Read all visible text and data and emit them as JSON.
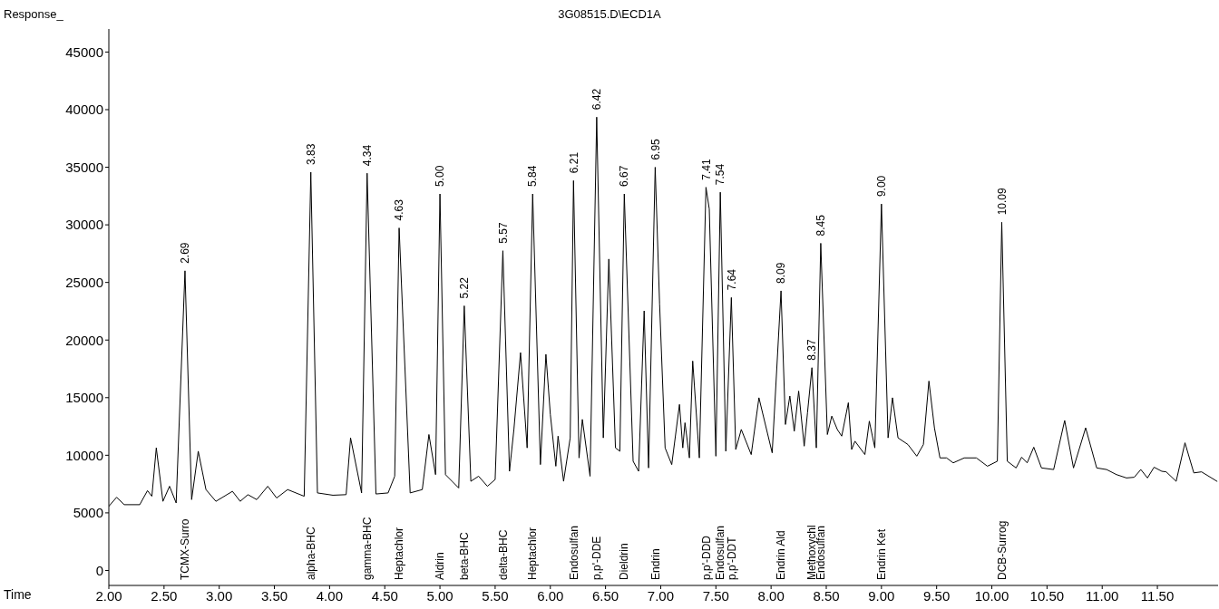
{
  "chart_data": {
    "type": "line",
    "title": "3G08515.D\\ECD1A",
    "xlabel": "Time",
    "ylabel": "Response_",
    "xlim": [
      2,
      12.05
    ],
    "xticks": [
      {
        "value": 2,
        "label": "2.00"
      },
      {
        "value": 2.5,
        "label": "2.50"
      },
      {
        "value": 3,
        "label": "3.00"
      },
      {
        "value": 3.5,
        "label": "3.50"
      },
      {
        "value": 4,
        "label": "4.00"
      },
      {
        "value": 4.5,
        "label": "4.50"
      },
      {
        "value": 5,
        "label": "5.00"
      },
      {
        "value": 5.5,
        "label": "5.50"
      },
      {
        "value": 6,
        "label": "6.00"
      },
      {
        "value": 6.5,
        "label": "6.50"
      },
      {
        "value": 7,
        "label": "7.00"
      },
      {
        "value": 7.5,
        "label": "7.50"
      },
      {
        "value": 8,
        "label": "8.00"
      },
      {
        "value": 8.5,
        "label": "8.50"
      },
      {
        "value": 9,
        "label": "9.00"
      },
      {
        "value": 9.5,
        "label": "9.50"
      },
      {
        "value": 10,
        "label": "10.00"
      },
      {
        "value": 10.5,
        "label": "10.50"
      },
      {
        "value": 11,
        "label": "11.00"
      },
      {
        "value": 11.5,
        "label": "11.50"
      }
    ],
    "ylim": [
      -1300,
      47000
    ],
    "yticks": [
      0,
      5000,
      10000,
      15000,
      20000,
      25000,
      30000,
      35000,
      40000,
      45000
    ],
    "grid": false,
    "marker": "none",
    "line_style": "solid",
    "series": [
      {
        "color": "#000000",
        "x": [
          2.0,
          2.07,
          2.14,
          2.28,
          2.35,
          2.39,
          2.43,
          2.49,
          2.55,
          2.61,
          2.69,
          2.75,
          2.81,
          2.88,
          2.97,
          3.12,
          3.19,
          3.26,
          3.34,
          3.44,
          3.52,
          3.62,
          3.77,
          3.83,
          3.89,
          4.03,
          4.15,
          4.19,
          4.29,
          4.34,
          4.42,
          4.53,
          4.59,
          4.63,
          4.73,
          4.84,
          4.9,
          4.96,
          5.0,
          5.05,
          5.11,
          5.17,
          5.22,
          5.28,
          5.35,
          5.43,
          5.5,
          5.57,
          5.63,
          5.67,
          5.73,
          5.79,
          5.84,
          5.91,
          5.96,
          6.0,
          6.05,
          6.07,
          6.12,
          6.18,
          6.21,
          6.26,
          6.29,
          6.36,
          6.42,
          6.48,
          6.53,
          6.59,
          6.63,
          6.67,
          6.75,
          6.8,
          6.85,
          6.89,
          6.95,
          6.99,
          7.04,
          7.1,
          7.17,
          7.2,
          7.22,
          7.26,
          7.29,
          7.35,
          7.41,
          7.44,
          7.5,
          7.54,
          7.59,
          7.64,
          7.68,
          7.73,
          7.82,
          7.89,
          8.01,
          8.09,
          8.13,
          8.17,
          8.21,
          8.25,
          8.3,
          8.33,
          8.37,
          8.41,
          8.45,
          8.51,
          8.55,
          8.6,
          8.64,
          8.7,
          8.73,
          8.76,
          8.85,
          8.89,
          8.94,
          9.0,
          9.06,
          9.1,
          9.15,
          9.24,
          9.32,
          9.38,
          9.43,
          9.48,
          9.53,
          9.59,
          9.65,
          9.75,
          9.86,
          9.96,
          10.05,
          10.09,
          10.14,
          10.22,
          10.27,
          10.32,
          10.38,
          10.45,
          10.56,
          10.66,
          10.74,
          10.85,
          10.95,
          11.04,
          11.13,
          11.22,
          11.29,
          11.35,
          11.41,
          11.47,
          11.54,
          11.58,
          11.67,
          11.75,
          11.83,
          11.9,
          12.04
        ],
        "values": [
          5570,
          6350,
          5710,
          5710,
          6930,
          6440,
          10640,
          6000,
          7310,
          5860,
          26010,
          6150,
          10350,
          7020,
          6000,
          6870,
          6000,
          6580,
          6150,
          7310,
          6290,
          7020,
          6440,
          34570,
          6730,
          6530,
          6580,
          11510,
          6730,
          34480,
          6640,
          6730,
          8180,
          29730,
          6730,
          7020,
          11800,
          8320,
          32680,
          8320,
          7740,
          7160,
          22970,
          7740,
          8180,
          7310,
          7890,
          27750,
          8610,
          12240,
          18910,
          10640,
          32680,
          9190,
          18760,
          13540,
          9050,
          11660,
          7740,
          11510,
          33840,
          9770,
          13110,
          8180,
          39350,
          11510,
          27030,
          10640,
          10350,
          32680,
          9480,
          8610,
          22530,
          8900,
          35000,
          23110,
          10640,
          9190,
          14410,
          10640,
          12820,
          9770,
          18180,
          9770,
          33260,
          31380,
          9920,
          32830,
          10350,
          23690,
          10500,
          12240,
          10060,
          14990,
          10210,
          24270,
          12670,
          15140,
          12090,
          15570,
          10790,
          13690,
          17600,
          10640,
          28400,
          11800,
          13400,
          12240,
          11660,
          14560,
          10500,
          11220,
          10060,
          12960,
          10640,
          31810,
          11510,
          14990,
          11510,
          10930,
          9920,
          10930,
          16440,
          12380,
          9770,
          9770,
          9340,
          9770,
          9770,
          9050,
          9480,
          30220,
          9480,
          8900,
          9830,
          9340,
          10700,
          8900,
          8760,
          13020,
          8900,
          12380,
          8900,
          8760,
          8320,
          8030,
          8090,
          8760,
          8030,
          8960,
          8610,
          8560,
          7740,
          11080,
          8470,
          8560,
          7740
        ]
      }
    ],
    "annotations": [
      {
        "text": "2.69",
        "x": 2.69,
        "y": 26010
      },
      {
        "text": "3.83",
        "x": 3.83,
        "y": 34570
      },
      {
        "text": "4.34",
        "x": 4.34,
        "y": 34480
      },
      {
        "text": "4.63",
        "x": 4.63,
        "y": 29730
      },
      {
        "text": "5.00",
        "x": 5.0,
        "y": 32680
      },
      {
        "text": "5.22",
        "x": 5.22,
        "y": 22970
      },
      {
        "text": "5.57",
        "x": 5.57,
        "y": 27750
      },
      {
        "text": "5.84",
        "x": 5.84,
        "y": 32680
      },
      {
        "text": "6.21",
        "x": 6.21,
        "y": 33840
      },
      {
        "text": "6.42",
        "x": 6.42,
        "y": 39350
      },
      {
        "text": "6.67",
        "x": 6.67,
        "y": 32680
      },
      {
        "text": "6.95",
        "x": 6.95,
        "y": 35000
      },
      {
        "text": "7.41",
        "x": 7.41,
        "y": 33260
      },
      {
        "text": "7.54",
        "x": 7.54,
        "y": 32830
      },
      {
        "text": "7.64",
        "x": 7.64,
        "y": 23690
      },
      {
        "text": "8.09",
        "x": 8.09,
        "y": 24270
      },
      {
        "text": "8.37",
        "x": 8.37,
        "y": 17600
      },
      {
        "text": "8.45",
        "x": 8.45,
        "y": 28400
      },
      {
        "text": "9.00",
        "x": 9.0,
        "y": 31810
      },
      {
        "text": "10.09",
        "x": 10.09,
        "y": 30220
      },
      "TCMX-Surro",
      "alpha-BHC",
      "gamma-BHC",
      "Heptachlor",
      "Aldrin",
      "beta-BHC",
      "delta-BHC",
      "Heptachlor",
      "Endosulfan",
      "p,p'-DDE",
      "Dieldrin",
      "Endrin",
      "p,p'-DDD",
      "Endosulfan",
      "p,p'-DDT",
      "Endrin Ald",
      "Methoxychl",
      "Endosulfan",
      "Endrin Ket",
      "DCB-Surrog"
    ]
  }
}
